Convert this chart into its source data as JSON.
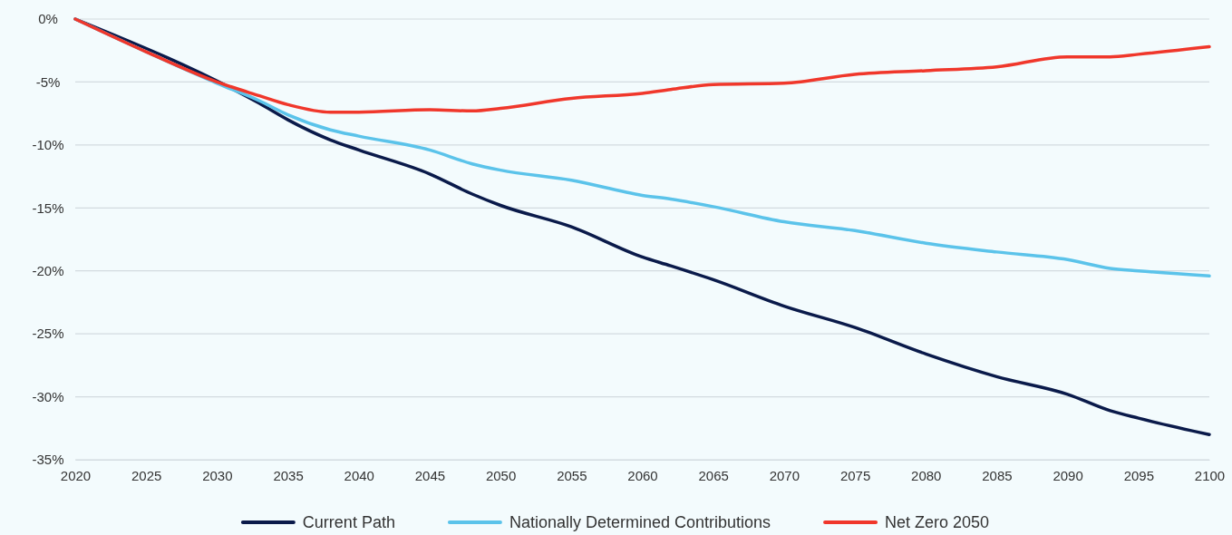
{
  "chart_data": {
    "type": "line",
    "x": [
      2020,
      2025,
      2030,
      2033,
      2035,
      2038,
      2040,
      2045,
      2048,
      2050,
      2055,
      2060,
      2062,
      2065,
      2070,
      2075,
      2080,
      2085,
      2090,
      2093,
      2095,
      2100
    ],
    "series": [
      {
        "name": "Current Path",
        "color": "#0a1a4a",
        "x": [
          2020,
          2033,
          2035,
          2038,
          2040,
          2045,
          2048,
          2050,
          2055,
          2060,
          2062,
          2065,
          2070,
          2075,
          2080,
          2085,
          2090,
          2093,
          2095,
          2100
        ],
        "values": [
          0,
          -6.7,
          -8.0,
          -9.6,
          -10.4,
          -12.3,
          -13.9,
          -14.8,
          -16.5,
          -18.9,
          -19.6,
          -20.7,
          -22.8,
          -24.5,
          -26.6,
          -28.4,
          -29.8,
          -31.1,
          -31.7,
          -33.0
        ]
      },
      {
        "name": "Nationally Determined Contributions",
        "color": "#5bc3ea",
        "x": [
          2020,
          2030,
          2033,
          2035,
          2038,
          2040,
          2045,
          2048,
          2050,
          2055,
          2060,
          2062,
          2065,
          2070,
          2075,
          2080,
          2085,
          2090,
          2093,
          2095,
          2100
        ],
        "values": [
          0,
          -5.1,
          -6.5,
          -7.6,
          -8.8,
          -9.3,
          -10.4,
          -11.5,
          -12.0,
          -12.8,
          -14.0,
          -14.3,
          -14.9,
          -16.1,
          -16.8,
          -17.8,
          -18.5,
          -19.1,
          -19.8,
          -20.0,
          -20.4
        ]
      },
      {
        "name": "Net Zero 2050",
        "color": "#f0372b",
        "values": [
          0,
          -2.6,
          -5.0,
          -6.1,
          -6.8,
          -7.4,
          -7.4,
          -7.2,
          -7.3,
          -7.1,
          -6.3,
          -5.9,
          -5.6,
          -5.2,
          -5.1,
          -4.4,
          -4.1,
          -3.8,
          -3.0,
          -3.0,
          -2.8,
          -2.2
        ]
      }
    ],
    "xlim": [
      2020,
      2100
    ],
    "xticks": [
      2020,
      2025,
      2030,
      2035,
      2040,
      2045,
      2050,
      2055,
      2060,
      2065,
      2070,
      2075,
      2080,
      2085,
      2090,
      2095,
      2100
    ],
    "ylim": [
      -35,
      0
    ],
    "yticks": [
      {
        "value": 0,
        "label": "0%"
      },
      {
        "value": -5,
        "label": "-5%"
      },
      {
        "value": -10,
        "label": "-10%"
      },
      {
        "value": -15,
        "label": "-15%"
      },
      {
        "value": -20,
        "label": "-20%"
      },
      {
        "value": -25,
        "label": "-25%"
      },
      {
        "value": -30,
        "label": "-30%"
      },
      {
        "value": -35,
        "label": "-35%"
      }
    ],
    "grid": "y",
    "legend": "bottom",
    "marker": "none",
    "line_style": "solid"
  }
}
